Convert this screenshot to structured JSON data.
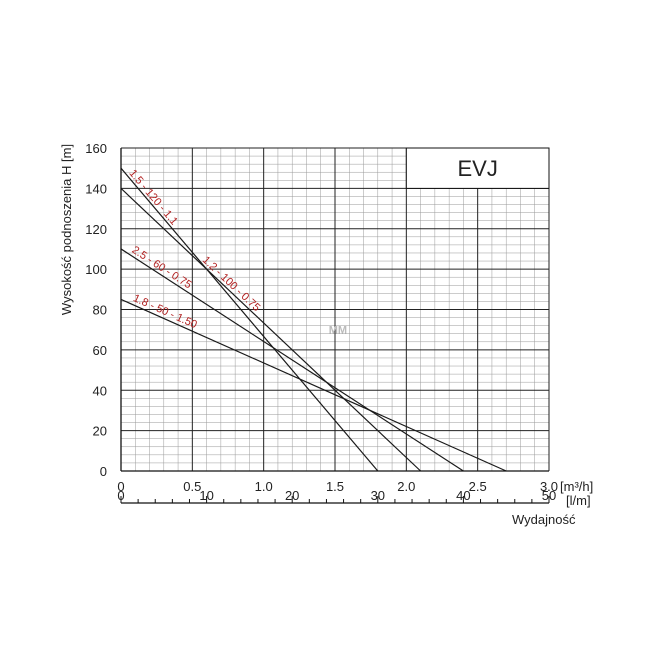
{
  "chart_data": {
    "type": "line",
    "title": "EVJ",
    "ylabel": "Wysokość podnoszenia H [m]",
    "xlabel": "Wydajność",
    "x_unit_primary": "[m³/h]",
    "x_unit_secondary": "[l/m]",
    "xlim": [
      0,
      3.0
    ],
    "ylim": [
      0,
      160
    ],
    "x_ticks": [
      "0",
      "0.5",
      "1.0",
      "1.5",
      "2.0",
      "2.5",
      "3.0"
    ],
    "x2_ticks": [
      "0",
      "10",
      "20",
      "30",
      "40",
      "50"
    ],
    "y_ticks": [
      "0",
      "20",
      "40",
      "60",
      "80",
      "100",
      "120",
      "140",
      "160"
    ],
    "grid": true,
    "watermark": "MM",
    "series": [
      {
        "name": "1.5 - 120 - 1.1",
        "x": [
          0,
          1.8
        ],
        "y": [
          150,
          0
        ]
      },
      {
        "name": "1.2 - 100 - 0.75",
        "x": [
          0,
          2.1
        ],
        "y": [
          140,
          0
        ]
      },
      {
        "name": "2.5 - 60 - 0.75",
        "x": [
          0,
          2.4
        ],
        "y": [
          110,
          0
        ]
      },
      {
        "name": "1.8 - 50 - 1.50",
        "x": [
          0,
          2.7
        ],
        "y": [
          85,
          0
        ]
      }
    ]
  }
}
